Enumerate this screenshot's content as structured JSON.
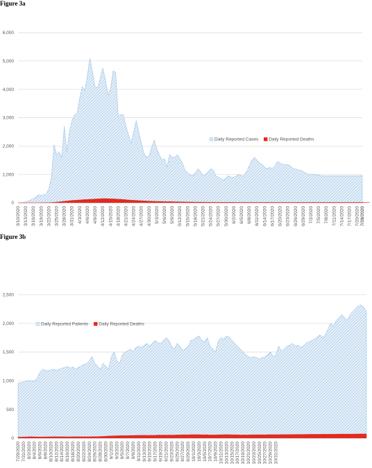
{
  "figures": {
    "a": {
      "label": "Figure 3a"
    },
    "b": {
      "label": "Figure 3b"
    }
  },
  "colors": {
    "cases": "#9cc3e5",
    "deaths": "#e02b1f",
    "grid": "#d9d9d9",
    "axis": "#bfbfbf",
    "text": "#595959"
  },
  "chart_data": [
    {
      "type": "area",
      "title": "",
      "xlabel": "",
      "ylabel": "",
      "ylim": [
        0,
        6000
      ],
      "yticks": [
        "0",
        "1,000",
        "2,000",
        "3,000",
        "4,000",
        "5,000",
        "6,000"
      ],
      "ytick_values": [
        0,
        1000,
        2000,
        3000,
        4000,
        5000,
        6000
      ],
      "grid": true,
      "legend": "middle-right",
      "x_tick_labels": [
        "3/10/2020",
        "3/13/2020",
        "3/16/2020",
        "3/19/2020",
        "3/22/2020",
        "3/25/2020",
        "3/28/2020",
        "3/31/2020",
        "4/3/2020",
        "4/6/2020",
        "4/9/2020",
        "4/12/2020",
        "4/15/2020",
        "4/18/2020",
        "4/21/2020",
        "4/24/2020",
        "4/27/2020",
        "4/30/2020",
        "5/3/2020",
        "5/6/2020",
        "5/9/2020",
        "5/12/2020",
        "5/15/2020",
        "5/18/2020",
        "5/21/2020",
        "5/24/2020",
        "5/27/2020",
        "5/30/2020",
        "6/2/2020",
        "6/5/2020",
        "6/8/2020",
        "6/11/2020",
        "6/14/2020",
        "6/17/2020",
        "6/20/2020",
        "6/23/2020",
        "6/26/2020",
        "6/29/2020",
        "7/2/2020",
        "7/5/2020",
        "7/8/2020",
        "7/11/2020",
        "7/14/2020",
        "7/17/2020",
        "7/20/2020",
        "7/23/2020",
        "7/26/2020"
      ],
      "x_tick_step_days": 3,
      "series": [
        {
          "name": "Daily Reported Cases",
          "color": "#9cc3e5",
          "values": [
            0,
            5,
            10,
            30,
            60,
            100,
            150,
            200,
            280,
            260,
            280,
            300,
            500,
            900,
            2050,
            1700,
            1800,
            1600,
            2700,
            1800,
            2500,
            2900,
            3100,
            3150,
            3700,
            4100,
            3950,
            4500,
            5100,
            4600,
            4100,
            4050,
            4400,
            4750,
            4350,
            3800,
            4000,
            4650,
            4600,
            3050,
            3100,
            3100,
            2700,
            2400,
            2100,
            2500,
            2900,
            2500,
            2100,
            1750,
            1600,
            1650,
            1950,
            2200,
            1900,
            1700,
            1500,
            1550,
            1250,
            1700,
            1600,
            1600,
            1700,
            1550,
            1400,
            1150,
            1050,
            980,
            950,
            1050,
            1200,
            1100,
            950,
            1000,
            1100,
            1200,
            1150,
            950,
            900,
            850,
            800,
            880,
            950,
            900,
            900,
            950,
            1000,
            950,
            950,
            1100,
            1300,
            1500,
            1600,
            1500,
            1400,
            1350,
            1250,
            1200,
            1250,
            1200,
            1300,
            1450,
            1400,
            1350,
            1350,
            1350,
            1300,
            1200,
            1200,
            1150,
            1150,
            1100,
            1050,
            1000,
            1000,
            1000,
            980,
            980,
            950,
            950,
            950,
            950,
            950,
            950,
            950,
            950,
            950,
            950,
            950,
            950,
            950,
            950,
            950,
            950,
            960
          ]
        },
        {
          "name": "Daily Reported Deaths",
          "color": "#e02b1f",
          "values": [
            0,
            0,
            0,
            0,
            0,
            0,
            0,
            0,
            1,
            2,
            3,
            5,
            8,
            12,
            18,
            25,
            35,
            45,
            55,
            65,
            75,
            85,
            90,
            95,
            100,
            110,
            115,
            120,
            125,
            130,
            135,
            140,
            145,
            150,
            150,
            148,
            145,
            140,
            135,
            130,
            125,
            118,
            110,
            100,
            95,
            90,
            85,
            80,
            75,
            70,
            65,
            60,
            58,
            55,
            52,
            50,
            48,
            46,
            44,
            42,
            40,
            38,
            36,
            34,
            32,
            30,
            29,
            28,
            27,
            26,
            25,
            24,
            23,
            22,
            21,
            20,
            20,
            19,
            19,
            18,
            18,
            18,
            17,
            17,
            17,
            16,
            16,
            16,
            15,
            15,
            15,
            15,
            15,
            15,
            15,
            15,
            15,
            15,
            15,
            15,
            15,
            15,
            15,
            15,
            15,
            15,
            15,
            15,
            15,
            15,
            15,
            15,
            15,
            15,
            15,
            15,
            15,
            15,
            15,
            15,
            15,
            15,
            15,
            15,
            15,
            15,
            15,
            15,
            15,
            15,
            15,
            15,
            15,
            15,
            15,
            15,
            15,
            15
          ]
        }
      ]
    },
    {
      "type": "area",
      "title": "",
      "xlabel": "",
      "ylabel": "",
      "ylim": [
        0,
        3000
      ],
      "yticks": [
        "0",
        "500",
        "1,000",
        "1,500",
        "2,000",
        "2,500"
      ],
      "ytick_values": [
        0,
        500,
        1000,
        1500,
        2000,
        2500
      ],
      "grid": true,
      "legend": "top-left",
      "x_tick_labels": [
        "7/29/2020",
        "7/31/2020",
        "8/2/2020",
        "8/4/2020",
        "8/6/2020",
        "8/8/2020",
        "8/10/2020",
        "8/12/2020",
        "8/14/2020",
        "8/16/2020",
        "8/18/2020",
        "8/20/2020",
        "8/22/2020",
        "8/24/2020",
        "8/26/2020",
        "8/28/2020",
        "8/30/2020",
        "9/1/2020",
        "9/3/2020",
        "9/5/2020",
        "9/7/2020",
        "9/9/2020",
        "9/11/2020",
        "9/13/2020",
        "9/15/2020",
        "9/17/2020",
        "9/19/2020",
        "9/21/2020",
        "9/23/2020",
        "9/25/2020",
        "9/27/2020",
        "9/29/2020",
        "10/1/2020",
        "10/3/2020",
        "10/5/2020",
        "10/7/2020",
        "10/9/2020",
        "10/11/2020",
        "10/13/2020",
        "10/15/2020",
        "10/17/2020",
        "10/19/2020",
        "10/21/2020",
        "10/23/2020",
        "10/25/2020",
        "10/27/2020",
        "10/29/2020",
        "10/31/2020"
      ],
      "x_tick_step_days": 2,
      "series": [
        {
          "name": "Daily Reported Patients",
          "color": "#9cc3e5",
          "values": [
            950,
            970,
            980,
            990,
            1000,
            1000,
            990,
            1050,
            1150,
            1200,
            1180,
            1170,
            1190,
            1200,
            1180,
            1200,
            1220,
            1230,
            1250,
            1220,
            1240,
            1200,
            1230,
            1260,
            1280,
            1300,
            1350,
            1420,
            1300,
            1250,
            1200,
            1300,
            1250,
            1200,
            1420,
            1500,
            1350,
            1300,
            1450,
            1500,
            1520,
            1550,
            1500,
            1580,
            1600,
            1580,
            1620,
            1650,
            1600,
            1650,
            1700,
            1660,
            1650,
            1700,
            1750,
            1700,
            1600,
            1550,
            1650,
            1600,
            1530,
            1550,
            1600,
            1700,
            1720,
            1750,
            1780,
            1700,
            1680,
            1750,
            1600,
            1550,
            1500,
            1700,
            1750,
            1720,
            1780,
            1760,
            1700,
            1650,
            1600,
            1550,
            1500,
            1450,
            1420,
            1400,
            1420,
            1400,
            1380,
            1400,
            1420,
            1450,
            1500,
            1420,
            1450,
            1600,
            1520,
            1550,
            1600,
            1620,
            1650,
            1600,
            1620,
            1580,
            1600,
            1650,
            1680,
            1700,
            1720,
            1750,
            1800,
            1750,
            1800,
            1900,
            2000,
            1950,
            2050,
            2100,
            2150,
            2100,
            2050,
            2150,
            2200,
            2250,
            2300,
            2320,
            2280,
            2200
          ]
        },
        {
          "name": "Daily Reported Deaths",
          "color": "#e02b1f",
          "values": [
            20,
            20,
            22,
            22,
            25,
            25,
            24,
            22,
            22,
            22,
            24,
            24,
            25,
            25,
            26,
            26,
            25,
            25,
            24,
            25,
            26,
            26,
            25,
            25,
            25,
            25,
            26,
            28,
            28,
            28,
            30,
            32,
            35,
            38,
            40,
            42,
            42,
            45,
            46,
            45,
            46,
            48,
            48,
            50,
            50,
            52,
            52,
            50,
            50,
            52,
            52,
            55,
            55,
            55,
            55,
            55,
            55,
            55,
            58,
            58,
            60,
            60,
            60,
            62,
            62,
            62,
            62,
            60,
            60,
            60,
            58,
            58,
            58,
            60,
            60,
            62,
            62,
            62,
            60,
            60,
            60,
            58,
            58,
            58,
            58,
            60,
            60,
            60,
            60,
            60,
            60,
            62,
            62,
            62,
            62,
            62,
            64,
            64,
            64,
            65,
            65,
            65,
            66,
            66,
            66,
            66,
            68,
            68,
            68,
            68,
            68,
            70,
            70,
            70,
            70,
            70,
            70,
            72,
            72,
            72,
            72,
            72,
            72,
            72,
            74,
            74,
            74,
            75
          ]
        }
      ]
    }
  ]
}
